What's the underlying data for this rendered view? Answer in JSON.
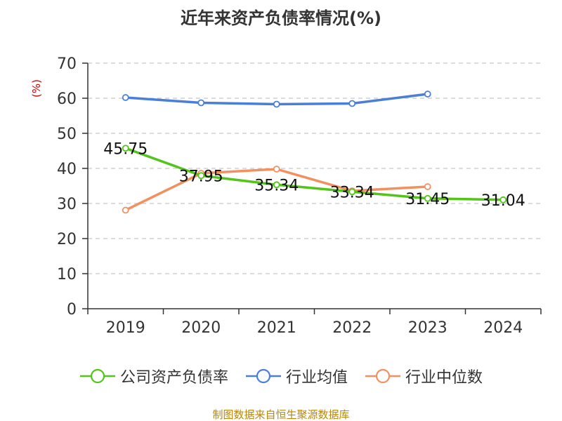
{
  "title": "近年来资产负债率情况(%)",
  "unit_label": "(%)",
  "source": "制图数据来自恒生聚源数据库",
  "chart_data": {
    "type": "line",
    "title": "近年来资产负债率情况(%)",
    "ylabel": "(%)",
    "xlabel": "",
    "categories": [
      "2019",
      "2020",
      "2021",
      "2022",
      "2023",
      "2024"
    ],
    "ylim": [
      0,
      70
    ],
    "yticks": [
      0,
      10,
      20,
      30,
      40,
      50,
      60,
      70
    ],
    "grid": true,
    "legend_position": "bottom",
    "series": [
      {
        "name": "公司资产负债率",
        "color": "#52c41a",
        "values": [
          45.75,
          37.95,
          35.34,
          33.34,
          31.45,
          31.04
        ],
        "data_labels": [
          "45.75",
          "37.95",
          "35.34",
          "33.34",
          "31.45",
          "31.04"
        ]
      },
      {
        "name": "行业均值",
        "color": "#4a7fd6",
        "values": [
          60.2,
          58.7,
          58.3,
          58.5,
          61.2,
          null
        ]
      },
      {
        "name": "行业中位数",
        "color": "#f29060",
        "values": [
          28.1,
          38.6,
          39.8,
          33.6,
          34.8,
          null
        ]
      }
    ]
  }
}
